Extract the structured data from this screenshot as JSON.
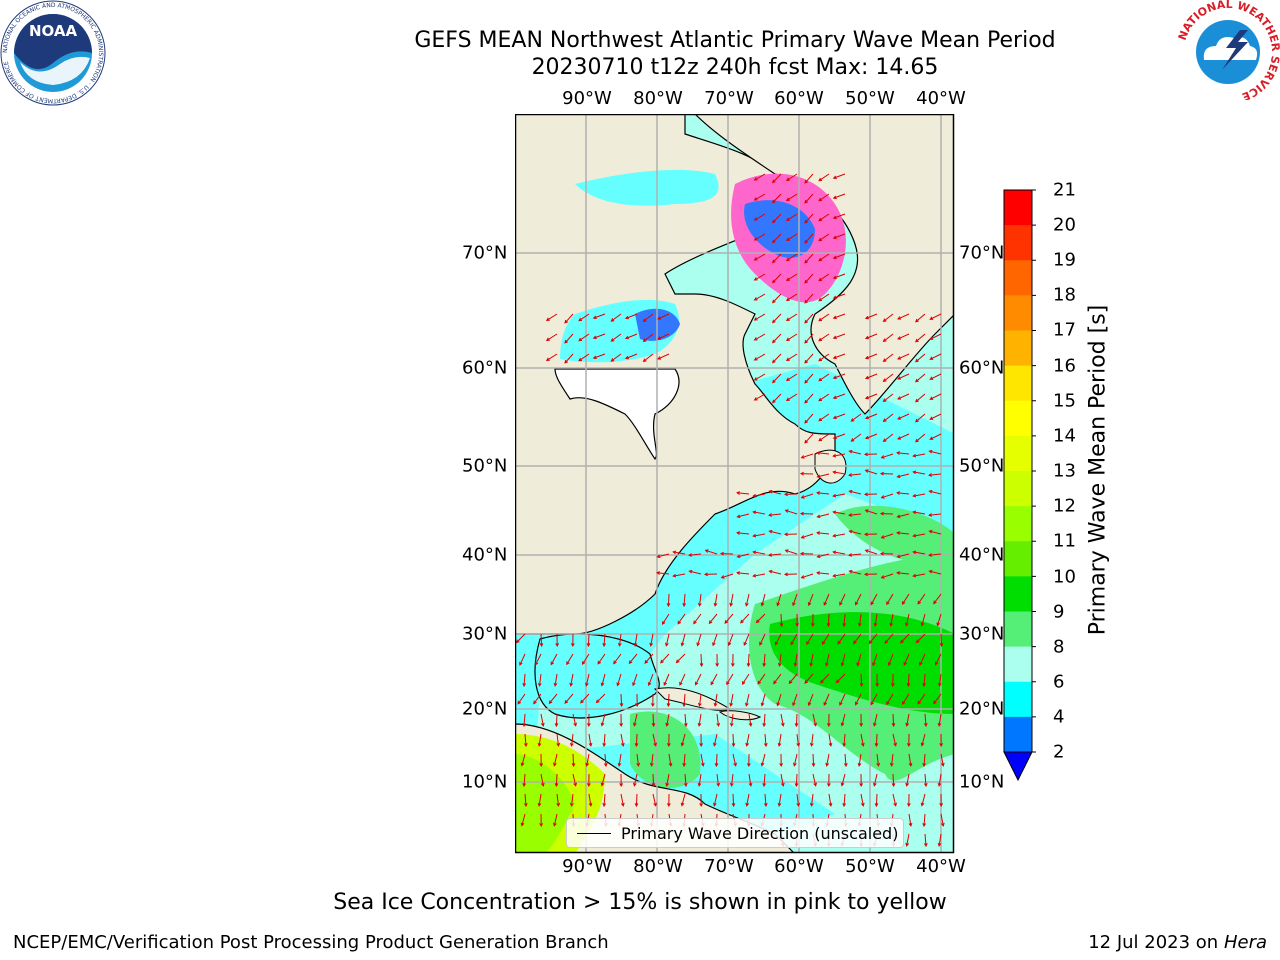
{
  "title_line1": "GEFS MEAN Northwest Atlantic Primary Wave Mean Period",
  "title_line2": "20230710 t12z 240h fcst   Max: 14.65",
  "map": {
    "lon_labels": [
      "90°W",
      "80°W",
      "70°W",
      "60°W",
      "50°W",
      "40°W"
    ],
    "lat_labels": [
      "70°N",
      "60°N",
      "50°N",
      "40°N",
      "30°N",
      "20°N",
      "10°N"
    ],
    "legend_label": "Primary Wave Direction (unscaled)",
    "arrow_color": "#e00000",
    "land_color": "#efedd9"
  },
  "colorbar": {
    "label": "Primary Wave Mean Period [s]",
    "ticks": [
      "21",
      "20",
      "19",
      "18",
      "17",
      "16",
      "15",
      "14",
      "13",
      "12",
      "11",
      "10",
      "9",
      "8",
      "6",
      "4",
      "2"
    ],
    "colors": [
      "#ff0000",
      "#ff3300",
      "#ff6600",
      "#ff8c00",
      "#ffb300",
      "#ffe600",
      "#ffff00",
      "#e6ff00",
      "#ccff00",
      "#99ff00",
      "#66ee00",
      "#00dd00",
      "#55ee77",
      "#aaffee",
      "#66ffff",
      "#00ffff",
      "#00eeff",
      "#0077ff"
    ],
    "under_color": "#0000ff"
  },
  "note": "Sea Ice Concentration > 15% is shown in pink to yellow",
  "footer_left": "NCEP/EMC/Verification Post Processing Product Generation Branch",
  "footer_right_date": "12 Jul 2023 on",
  "footer_right_machine": "Hera",
  "logos": {
    "noaa_text": "NOAA",
    "noaa_ring_text": "NATIONAL OCEANIC AND ATMOSPHERIC ADMINISTRATION · U.S. DEPARTMENT OF COMMERCE",
    "nws_ring_text": "NATIONAL WEATHER SERVICE"
  }
}
